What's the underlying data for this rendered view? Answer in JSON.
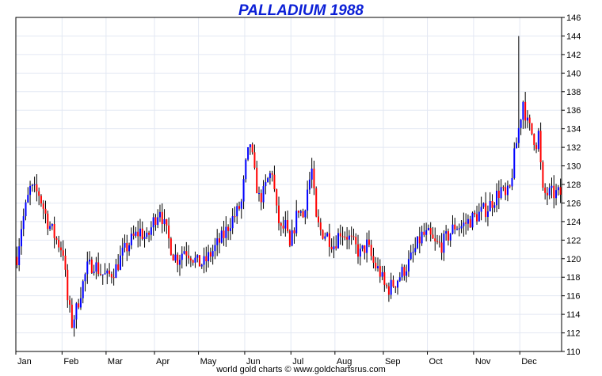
{
  "title": "PALLADIUM 1988",
  "footer": "world gold charts © www.goldchartsrus.com",
  "colors": {
    "title": "#0b1fd6",
    "up": "#0000ff",
    "down": "#ff0000",
    "wick": "#000000",
    "grid": "#e3e8f3"
  },
  "chart_data": {
    "type": "ohlc",
    "title": "PALLADIUM 1988",
    "x_tick_labels": [
      "Jan",
      "Feb",
      "Mar",
      "Apr",
      "May",
      "Jun",
      "Jul",
      "Aug",
      "Sep",
      "Oct",
      "Nov",
      "Dec"
    ],
    "y_tick_labels": [
      "110",
      "112",
      "114",
      "116",
      "118",
      "120",
      "122",
      "124",
      "126",
      "128",
      "130",
      "132",
      "134",
      "136",
      "138",
      "140",
      "142",
      "144",
      "146"
    ],
    "ylim": [
      110,
      146
    ],
    "y_axis_position": "right",
    "grid": true,
    "days_per_month": [
      21,
      20,
      22,
      20,
      21,
      21,
      20,
      22,
      20,
      21,
      21,
      19
    ],
    "anchors": [
      [
        0,
        120.2
      ],
      [
        2,
        123.5
      ],
      [
        6,
        127.5
      ],
      [
        10,
        127.0
      ],
      [
        14,
        124.0
      ],
      [
        18,
        122.0
      ],
      [
        21,
        120.8
      ],
      [
        23,
        115.5
      ],
      [
        25,
        113.0
      ],
      [
        27,
        114.5
      ],
      [
        29,
        116.5
      ],
      [
        32,
        119.0
      ],
      [
        35,
        119.5
      ],
      [
        38,
        118.5
      ],
      [
        41,
        118.0
      ],
      [
        45,
        119.0
      ],
      [
        48,
        120.5
      ],
      [
        52,
        122.0
      ],
      [
        56,
        123.0
      ],
      [
        59,
        122.0
      ],
      [
        62,
        124.0
      ],
      [
        65,
        125.5
      ],
      [
        67,
        123.5
      ],
      [
        69,
        122.0
      ],
      [
        71,
        120.5
      ],
      [
        73,
        120.0
      ],
      [
        76,
        121.0
      ],
      [
        79,
        120.5
      ],
      [
        82,
        119.5
      ],
      [
        85,
        119.5
      ],
      [
        88,
        120.5
      ],
      [
        91,
        121.5
      ],
      [
        94,
        122.5
      ],
      [
        97,
        124.0
      ],
      [
        100,
        125.0
      ],
      [
        102,
        126.0
      ],
      [
        104,
        130.0
      ],
      [
        106,
        132.5
      ],
      [
        108,
        129.0
      ],
      [
        110,
        126.5
      ],
      [
        112,
        127.0
      ],
      [
        114,
        128.5
      ],
      [
        116,
        129.5
      ],
      [
        118,
        125.0
      ],
      [
        120,
        123.0
      ],
      [
        122,
        123.5
      ],
      [
        124,
        121.0
      ],
      [
        126,
        123.5
      ],
      [
        128,
        125.5
      ],
      [
        130,
        124.5
      ],
      [
        132,
        127.5
      ],
      [
        134,
        129.5
      ],
      [
        136,
        124.0
      ],
      [
        138,
        123.0
      ],
      [
        141,
        122.5
      ],
      [
        144,
        121.5
      ],
      [
        147,
        123.0
      ],
      [
        150,
        122.5
      ],
      [
        153,
        121.5
      ],
      [
        156,
        120.5
      ],
      [
        159,
        121.5
      ],
      [
        162,
        119.5
      ],
      [
        165,
        118.5
      ],
      [
        167,
        117.0
      ],
      [
        169,
        116.8
      ],
      [
        172,
        117.5
      ],
      [
        175,
        118.5
      ],
      [
        178,
        119.5
      ],
      [
        181,
        121.0
      ],
      [
        184,
        122.5
      ],
      [
        187,
        122.5
      ],
      [
        190,
        121.5
      ],
      [
        193,
        121.5
      ],
      [
        196,
        122.5
      ],
      [
        199,
        123.5
      ],
      [
        202,
        123.5
      ],
      [
        205,
        124.0
      ],
      [
        208,
        124.5
      ],
      [
        211,
        125.0
      ],
      [
        214,
        125.5
      ],
      [
        217,
        126.5
      ],
      [
        220,
        127.5
      ],
      [
        222,
        126.5
      ],
      [
        224,
        127.5
      ],
      [
        226,
        131.0
      ],
      [
        228,
        134.0
      ],
      [
        230,
        137.0
      ],
      [
        232,
        134.5
      ],
      [
        234,
        133.5
      ],
      [
        236,
        132.5
      ],
      [
        237,
        133.5
      ],
      [
        238,
        130.0
      ],
      [
        239,
        127.0
      ]
    ],
    "max_high": 144.0,
    "max_high_day": 228,
    "min_low": 112.5,
    "min_low_day": 25
  }
}
